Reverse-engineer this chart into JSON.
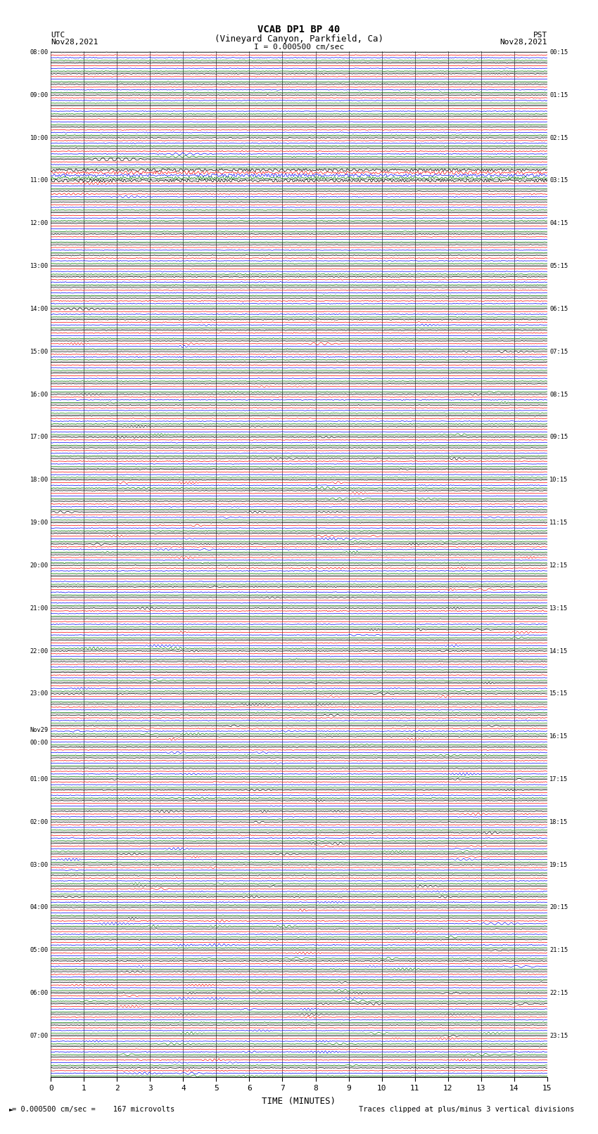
{
  "title_line1": "VCAB DP1 BP 40",
  "title_line2": "(Vineyard Canyon, Parkfield, Ca)",
  "scale_label": "I = 0.000500 cm/sec",
  "left_label_top": "UTC",
  "left_label_date": "Nov28,2021",
  "right_label_top": "PST",
  "right_label_date": "Nov28,2021",
  "bottom_xlabel": "TIME (MINUTES)",
  "bottom_note_left": "= 0.000500 cm/sec =    167 microvolts",
  "bottom_note_right": "Traces clipped at plus/minus 3 vertical divisions",
  "xmin": 0,
  "xmax": 15,
  "xticks": [
    0,
    1,
    2,
    3,
    4,
    5,
    6,
    7,
    8,
    9,
    10,
    11,
    12,
    13,
    14,
    15
  ],
  "bg_color": "#ffffff",
  "trace_colors": [
    "black",
    "red",
    "blue",
    "green"
  ],
  "utc_times": [
    "08:00",
    "",
    "",
    "",
    "09:00",
    "",
    "",
    "",
    "10:00",
    "",
    "",
    "",
    "11:00",
    "",
    "",
    "",
    "12:00",
    "",
    "",
    "",
    "13:00",
    "",
    "",
    "",
    "14:00",
    "",
    "",
    "",
    "15:00",
    "",
    "",
    "",
    "16:00",
    "",
    "",
    "",
    "17:00",
    "",
    "",
    "",
    "18:00",
    "",
    "",
    "",
    "19:00",
    "",
    "",
    "",
    "20:00",
    "",
    "",
    "",
    "21:00",
    "",
    "",
    "",
    "22:00",
    "",
    "",
    "",
    "23:00",
    "",
    "",
    "",
    "Nov29\n00:00",
    "",
    "",
    "",
    "01:00",
    "",
    "",
    "",
    "02:00",
    "",
    "",
    "",
    "03:00",
    "",
    "",
    "",
    "04:00",
    "",
    "",
    "",
    "05:00",
    "",
    "",
    "",
    "06:00",
    "",
    "",
    "",
    "07:00",
    "",
    "",
    ""
  ],
  "pst_times": [
    "00:15",
    "",
    "",
    "",
    "01:15",
    "",
    "",
    "",
    "02:15",
    "",
    "",
    "",
    "03:15",
    "",
    "",
    "",
    "04:15",
    "",
    "",
    "",
    "05:15",
    "",
    "",
    "",
    "06:15",
    "",
    "",
    "",
    "07:15",
    "",
    "",
    "",
    "08:15",
    "",
    "",
    "",
    "09:15",
    "",
    "",
    "",
    "10:15",
    "",
    "",
    "",
    "11:15",
    "",
    "",
    "",
    "12:15",
    "",
    "",
    "",
    "13:15",
    "",
    "",
    "",
    "14:15",
    "",
    "",
    "",
    "15:15",
    "",
    "",
    "",
    "16:15",
    "",
    "",
    "",
    "17:15",
    "",
    "",
    "",
    "18:15",
    "",
    "",
    "",
    "19:15",
    "",
    "",
    "",
    "20:15",
    "",
    "",
    "",
    "21:15",
    "",
    "",
    "",
    "22:15",
    "",
    "",
    "",
    "23:15",
    "",
    "",
    ""
  ],
  "n_rows": 96,
  "n_channels": 4,
  "seed": 12345
}
